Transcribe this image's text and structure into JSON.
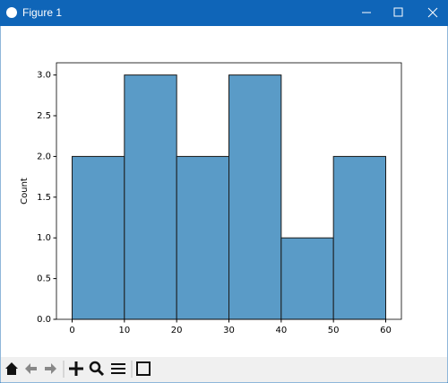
{
  "window": {
    "title": "Figure 1"
  },
  "chart_data": {
    "type": "histogram",
    "ylabel": "Count",
    "bins": [
      0,
      10,
      20,
      30,
      40,
      50,
      60
    ],
    "counts": [
      2,
      3,
      2,
      3,
      1,
      2
    ],
    "color": "#5a9bc7",
    "edgecolor": "#1a1a1a",
    "xlim": [
      -3,
      63
    ],
    "ylim": [
      0,
      3.15
    ],
    "xticks": [
      0,
      10,
      20,
      30,
      40,
      50,
      60
    ],
    "yticks": [
      {
        "value": 0,
        "label": "0.0"
      },
      {
        "value": 0.5,
        "label": "0.5"
      },
      {
        "value": 1,
        "label": "1.0"
      },
      {
        "value": 1.5,
        "label": "1.5"
      },
      {
        "value": 2,
        "label": "2.0"
      },
      {
        "value": 2.5,
        "label": "2.5"
      },
      {
        "value": 3,
        "label": "3.0"
      }
    ]
  }
}
